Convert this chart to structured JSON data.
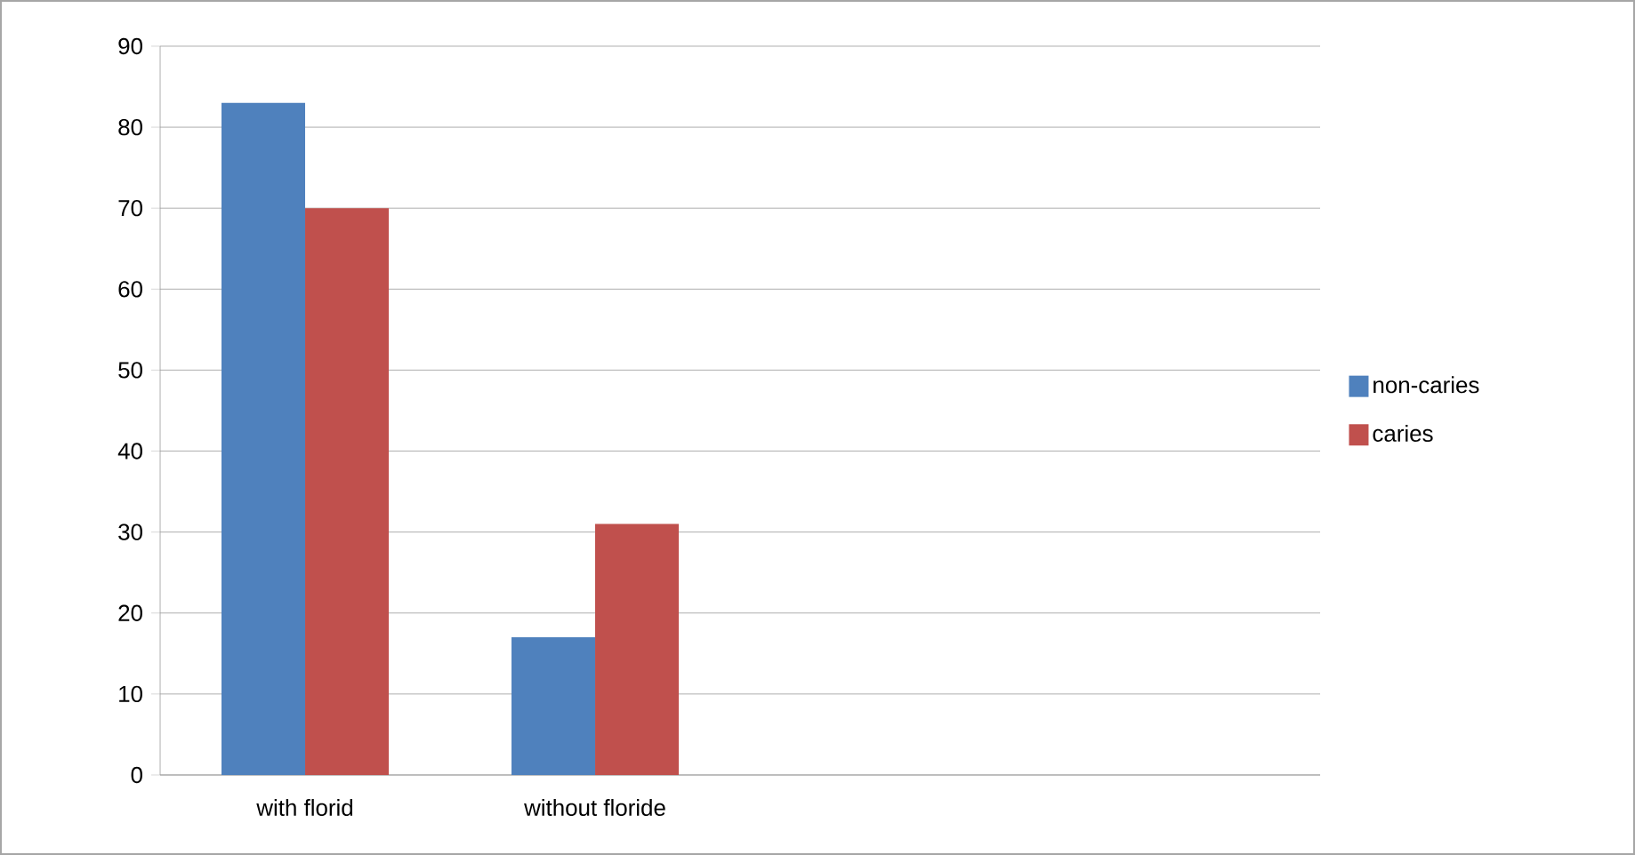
{
  "chart_data": {
    "type": "bar",
    "categories": [
      "with florid",
      "without floride",
      null,
      null
    ],
    "series": [
      {
        "name": "non-caries",
        "color": "#4f81bd",
        "values": [
          83,
          17,
          null,
          null
        ]
      },
      {
        "name": "caries",
        "color": "#c0504d",
        "values": [
          70,
          31,
          null,
          null
        ]
      }
    ],
    "ylim": [
      0,
      90
    ],
    "yticks": [
      0,
      10,
      20,
      30,
      40,
      50,
      60,
      70,
      80,
      90
    ],
    "grid": "y",
    "legend": "right"
  }
}
